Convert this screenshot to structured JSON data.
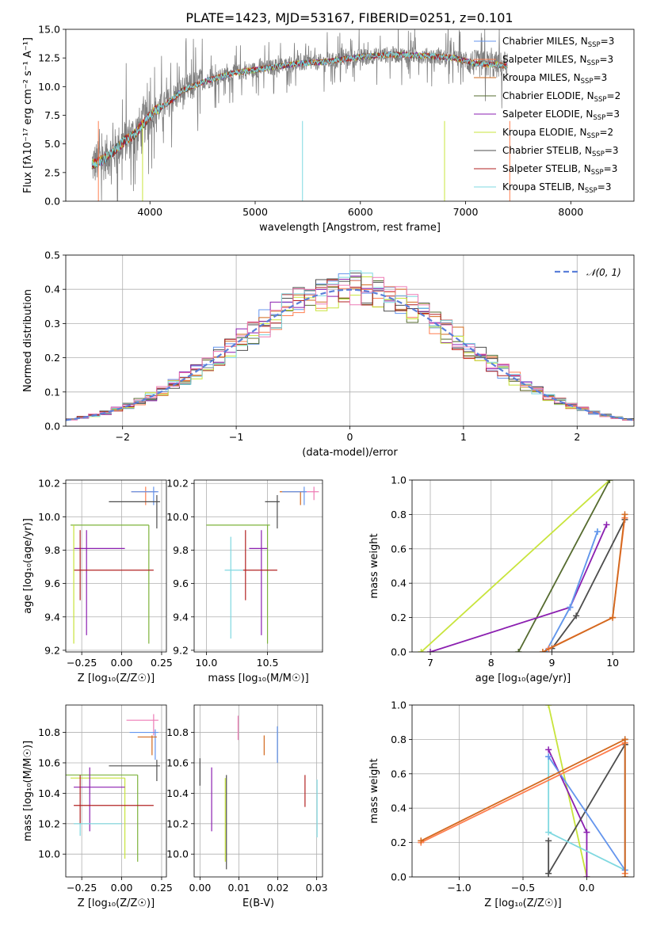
{
  "figure_title": "PLATE=1423, MJD=53167, FIBERID=0251, z=0.101",
  "colors": {
    "data": "#7f7f7f",
    "chabrier_miles": "#6495ed",
    "salpeter_miles": "#ff7f50",
    "kroupa_miles": "#d2691e",
    "chabrier_elodie": "#556b2f",
    "salpeter_elodie": "#8b1fb0",
    "kroupa_elodie": "#c8e43c",
    "chabrier_stelib": "#4d4d4d",
    "salpeter_stelib": "#b22222",
    "kroupa_stelib": "#7fd8e0",
    "normal": "#5b7fd9",
    "extra_pink": "#ee7bb5",
    "extra_green": "#7db33b"
  },
  "chart_data": [
    {
      "id": "spectrum",
      "type": "line",
      "title": "PLATE=1423, MJD=53167, FIBERID=0251, z=0.101",
      "xlabel": "wavelength [Angstrom, rest frame]",
      "ylabel": "Flux [fλ10⁻¹⁷ erg cm⁻² s⁻¹ A⁻¹]",
      "xlim": [
        3200,
        8600
      ],
      "ylim": [
        0,
        15
      ],
      "xticks": [
        4000,
        5000,
        6000,
        7000,
        8000
      ],
      "yticks": [
        0.0,
        2.5,
        5.0,
        7.5,
        10.0,
        12.5,
        15.0
      ],
      "ytick_labels": [
        "0.0",
        "2.5",
        "5.0",
        "7.5",
        "10.0",
        "12.5",
        "15.0"
      ],
      "grid": false,
      "legend_placement": "top-right",
      "continuum_x": [
        3450,
        3550,
        3650,
        3750,
        3850,
        3950,
        4050,
        4150,
        4300,
        4500,
        4800,
        5100,
        5400,
        5700,
        6000,
        6300,
        6600,
        6900,
        7100,
        7300,
        7400
      ],
      "continuum_y": [
        3.2,
        3.6,
        4.3,
        5.2,
        5.8,
        6.9,
        7.9,
        8.4,
        9.6,
        10.4,
        11.2,
        11.6,
        12.0,
        12.2,
        12.6,
        12.8,
        12.7,
        12.5,
        12.0,
        11.9,
        11.8
      ],
      "series": [
        {
          "name": "Chabrier MILES, N_SSP=3",
          "legend_label": "Chabrier MILES, N",
          "legend_sub": "SSP",
          "legend_n": "=3",
          "color": "#6495ed"
        },
        {
          "name": "Salpeter MILES, N_SSP=3",
          "legend_label": "Salpeter MILES, N",
          "legend_sub": "SSP",
          "legend_n": "=3",
          "color": "#ff7f50"
        },
        {
          "name": "Kroupa MILES, N_SSP=3",
          "legend_label": "Kroupa MILES, N",
          "legend_sub": "SSP",
          "legend_n": "=3",
          "color": "#d2691e"
        },
        {
          "name": "Chabrier ELODIE, N_SSP=2",
          "legend_label": "Chabrier ELODIE, N",
          "legend_sub": "SSP",
          "legend_n": "=2",
          "color": "#556b2f"
        },
        {
          "name": "Salpeter ELODIE, N_SSP=3",
          "legend_label": "Salpeter ELODIE, N",
          "legend_sub": "SSP",
          "legend_n": "=3",
          "color": "#8b1fb0"
        },
        {
          "name": "Kroupa ELODIE, N_SSP=2",
          "legend_label": "Kroupa ELODIE, N",
          "legend_sub": "SSP",
          "legend_n": "=2",
          "color": "#c8e43c"
        },
        {
          "name": "Chabrier STELIB, N_SSP=3",
          "legend_label": "Chabrier STELIB, N",
          "legend_sub": "SSP",
          "legend_n": "=3",
          "color": "#4d4d4d"
        },
        {
          "name": "Salpeter STELIB, N_SSP=3",
          "legend_label": "Salpeter STELIB, N",
          "legend_sub": "SSP",
          "legend_n": "=3",
          "color": "#b22222"
        },
        {
          "name": "Kroupa STELIB, N_SSP=3",
          "legend_label": "Kroupa STELIB, N",
          "legend_sub": "SSP",
          "legend_n": "=3",
          "color": "#7fd8e0"
        }
      ]
    },
    {
      "id": "residuals",
      "type": "line",
      "xlabel": "(data-model)/error",
      "ylabel": "Normed distribution",
      "xlim": [
        -2.5,
        2.5
      ],
      "ylim": [
        0,
        0.5
      ],
      "xticks": [
        -2,
        -1,
        0,
        1,
        2
      ],
      "xtick_labels": [
        "−2",
        "−1",
        "0",
        "1",
        "2"
      ],
      "yticks": [
        0.0,
        0.1,
        0.2,
        0.3,
        0.4,
        0.5
      ],
      "ytick_labels": [
        "0.0",
        "0.1",
        "0.2",
        "0.3",
        "0.4",
        "0.5"
      ],
      "grid": true,
      "legend_placement": "top-right",
      "normal_label": "𝒩(0, 1)",
      "histogram_bin_width": 0.1
    },
    {
      "id": "age_vs_Z",
      "type": "scatter",
      "xlabel": "Z [log₁₀(Z/Z☉)]",
      "ylabel": "age  [log₁₀(age/yr)]",
      "xlim": [
        -0.35,
        0.28
      ],
      "ylim": [
        9.19,
        10.22
      ],
      "xticks": [
        -0.25,
        0.0,
        0.25
      ],
      "xtick_labels": [
        "−0.25",
        "0.00",
        "0.25"
      ],
      "yticks": [
        9.2,
        9.4,
        9.6,
        9.8,
        10.0,
        10.2
      ],
      "ytick_labels": [
        "9.2",
        "9.4",
        "9.6",
        "9.8",
        "10.0",
        "10.2"
      ],
      "grid": true,
      "points": [
        {
          "color": "#ff7f50",
          "x": 0.15,
          "xlo": 0.06,
          "xhi": 0.22,
          "y": 10.15,
          "ylo": 10.07,
          "yhi": 10.18
        },
        {
          "color": "#6495ed",
          "x": 0.2,
          "xlo": 0.06,
          "xhi": 0.23,
          "y": 10.15,
          "ylo": 10.07,
          "yhi": 10.18
        },
        {
          "color": "#4d4d4d",
          "x": 0.22,
          "xlo": -0.08,
          "xhi": 0.24,
          "y": 10.09,
          "ylo": 9.93,
          "yhi": 10.13
        },
        {
          "color": "#7db33b",
          "x": 0.17,
          "xlo": -0.32,
          "xhi": 0.17,
          "y": 9.95,
          "ylo": 9.24,
          "yhi": 9.95
        },
        {
          "color": "#8b1fb0",
          "x": -0.22,
          "xlo": -0.3,
          "xhi": 0.02,
          "y": 9.81,
          "ylo": 9.29,
          "yhi": 9.92
        },
        {
          "color": "#b22222",
          "x": -0.26,
          "xlo": -0.3,
          "xhi": 0.2,
          "y": 9.68,
          "ylo": 9.5,
          "yhi": 9.92
        },
        {
          "color": "#c8e43c",
          "x": -0.3,
          "xlo": -0.3,
          "xhi": -0.3,
          "y": 9.68,
          "ylo": 9.24,
          "yhi": 9.95
        }
      ]
    },
    {
      "id": "age_vs_mass",
      "type": "scatter",
      "xlabel": "mass [log₁₀(M/M☉)]",
      "xlim": [
        9.9,
        10.95
      ],
      "ylim": [
        9.19,
        10.22
      ],
      "xticks": [
        10.0,
        10.5
      ],
      "xtick_labels": [
        "10.0",
        "10.5"
      ],
      "yticks": [
        9.2,
        9.4,
        9.6,
        9.8,
        10.0,
        10.2
      ],
      "ytick_labels": [
        "9.2",
        "9.4",
        "9.6",
        "9.8",
        "10.0",
        "10.2"
      ],
      "grid": true,
      "points": [
        {
          "color": "#ee7bb5",
          "x": 10.88,
          "xlo": 10.78,
          "xhi": 10.92,
          "y": 10.15,
          "ylo": 10.1,
          "yhi": 10.18
        },
        {
          "color": "#d2691e",
          "x": 10.77,
          "xlo": 10.6,
          "xhi": 10.8,
          "y": 10.15,
          "ylo": 10.07,
          "yhi": 10.15
        },
        {
          "color": "#6495ed",
          "x": 10.8,
          "xlo": 10.62,
          "xhi": 10.82,
          "y": 10.15,
          "ylo": 10.07,
          "yhi": 10.18
        },
        {
          "color": "#4d4d4d",
          "x": 10.58,
          "xlo": 10.48,
          "xhi": 10.6,
          "y": 10.09,
          "ylo": 9.93,
          "yhi": 10.13
        },
        {
          "color": "#7db33b",
          "x": 10.5,
          "xlo": 10.0,
          "xhi": 10.52,
          "y": 9.95,
          "ylo": 9.24,
          "yhi": 9.95
        },
        {
          "color": "#8b1fb0",
          "x": 10.45,
          "xlo": 10.35,
          "xhi": 10.5,
          "y": 9.81,
          "ylo": 9.29,
          "yhi": 9.92
        },
        {
          "color": "#b22222",
          "x": 10.32,
          "xlo": 10.3,
          "xhi": 10.58,
          "y": 9.68,
          "ylo": 9.5,
          "yhi": 9.92
        },
        {
          "color": "#7fd8e0",
          "x": 10.2,
          "xlo": 10.15,
          "xhi": 10.3,
          "y": 9.68,
          "ylo": 9.27,
          "yhi": 9.88
        }
      ]
    },
    {
      "id": "weight_vs_age",
      "type": "line",
      "xlabel": "age  [log₁₀(age/yr)]",
      "ylabel": "mass weight",
      "xlim": [
        6.7,
        10.35
      ],
      "ylim": [
        0,
        1
      ],
      "xticks": [
        7,
        8,
        9,
        10
      ],
      "xtick_labels": [
        "7",
        "8",
        "9",
        "10"
      ],
      "yticks": [
        0.0,
        0.2,
        0.4,
        0.6,
        0.8,
        1.0
      ],
      "ytick_labels": [
        "0.0",
        "0.2",
        "0.4",
        "0.6",
        "0.8",
        "1.0"
      ],
      "grid": true,
      "series": [
        {
          "color": "#c8e43c",
          "x": [
            6.85,
            9.95
          ],
          "y": [
            0.0,
            1.0
          ]
        },
        {
          "color": "#556b2f",
          "x": [
            8.45,
            9.95
          ],
          "y": [
            0.0,
            1.0
          ]
        },
        {
          "color": "#8b1fb0",
          "x": [
            7.0,
            9.3,
            9.9
          ],
          "y": [
            0.0,
            0.26,
            0.74
          ]
        },
        {
          "color": "#7fd8e0",
          "x": [
            8.9,
            9.3,
            9.75
          ],
          "y": [
            0.0,
            0.26,
            0.7
          ]
        },
        {
          "color": "#6495ed",
          "x": [
            8.9,
            9.3,
            9.75
          ],
          "y": [
            0.0,
            0.26,
            0.7
          ]
        },
        {
          "color": "#4d4d4d",
          "x": [
            9.0,
            9.4,
            10.2
          ],
          "y": [
            0.02,
            0.21,
            0.77
          ]
        },
        {
          "color": "#ff7f50",
          "x": [
            8.95,
            10.0,
            10.2
          ],
          "y": [
            0.02,
            0.2,
            0.78
          ]
        },
        {
          "color": "#d2691e",
          "x": [
            8.85,
            10.0,
            10.2
          ],
          "y": [
            0.0,
            0.2,
            0.8
          ]
        }
      ]
    },
    {
      "id": "mass_vs_Z",
      "type": "scatter",
      "xlabel": "Z [log₁₀(Z/Z☉)]",
      "ylabel": "mass [log₁₀(M/M☉)]",
      "xlim": [
        -0.35,
        0.28
      ],
      "ylim": [
        9.85,
        10.98
      ],
      "xticks": [
        -0.25,
        0.0,
        0.25
      ],
      "xtick_labels": [
        "−0.25",
        "0.00",
        "0.25"
      ],
      "yticks": [
        10.0,
        10.2,
        10.4,
        10.6,
        10.8
      ],
      "ytick_labels": [
        "10.0",
        "10.2",
        "10.4",
        "10.6",
        "10.8"
      ],
      "grid": true,
      "points": [
        {
          "color": "#ee7bb5",
          "x": 0.2,
          "xlo": 0.03,
          "xhi": 0.23,
          "y": 10.88,
          "ylo": 10.78,
          "yhi": 10.92
        },
        {
          "color": "#6495ed",
          "x": 0.21,
          "xlo": 0.05,
          "xhi": 0.23,
          "y": 10.8,
          "ylo": 10.62,
          "yhi": 10.82
        },
        {
          "color": "#d2691e",
          "x": 0.19,
          "xlo": 0.1,
          "xhi": 0.22,
          "y": 10.77,
          "ylo": 10.65,
          "yhi": 10.78
        },
        {
          "color": "#4d4d4d",
          "x": 0.22,
          "xlo": -0.08,
          "xhi": 0.24,
          "y": 10.58,
          "ylo": 10.48,
          "yhi": 10.62
        },
        {
          "color": "#7db33b",
          "x": 0.1,
          "xlo": -0.35,
          "xhi": 0.1,
          "y": 10.52,
          "ylo": 9.95,
          "yhi": 10.52
        },
        {
          "color": "#c8e43c",
          "x": 0.02,
          "xlo": -0.32,
          "xhi": 0.02,
          "y": 10.5,
          "ylo": 9.97,
          "yhi": 10.5
        },
        {
          "color": "#8b1fb0",
          "x": -0.2,
          "xlo": -0.3,
          "xhi": 0.02,
          "y": 10.44,
          "ylo": 10.15,
          "yhi": 10.57
        },
        {
          "color": "#b22222",
          "x": -0.26,
          "xlo": -0.3,
          "xhi": 0.2,
          "y": 10.32,
          "ylo": 10.2,
          "yhi": 10.52
        },
        {
          "color": "#7fd8e0",
          "x": -0.26,
          "xlo": -0.3,
          "xhi": 0.0,
          "y": 10.2,
          "ylo": 10.12,
          "yhi": 10.2
        }
      ]
    },
    {
      "id": "mass_vs_ebv",
      "type": "scatter",
      "xlabel": "E(B-V)",
      "xlim": [
        -0.0015,
        0.0315
      ],
      "ylim": [
        9.85,
        10.98
      ],
      "xticks": [
        0.0,
        0.01,
        0.02,
        0.03
      ],
      "xtick_labels": [
        "0.00",
        "0.01",
        "0.02",
        "0.03"
      ],
      "yticks": [
        10.0,
        10.2,
        10.4,
        10.6,
        10.8
      ],
      "ytick_labels": [
        "10.0",
        "10.2",
        "10.4",
        "10.6",
        "10.8"
      ],
      "grid": true,
      "points": [
        {
          "color": "#4d4d4d",
          "x": 0.0,
          "ylo": 10.45,
          "yhi": 10.63
        },
        {
          "color": "#8b1fb0",
          "x": 0.003,
          "ylo": 10.15,
          "yhi": 10.57
        },
        {
          "color": "#c8e43c",
          "x": 0.0065,
          "ylo": 9.95,
          "yhi": 10.5
        },
        {
          "color": "#4d4d4d",
          "x": 0.0068,
          "ylo": 9.9,
          "yhi": 10.52
        },
        {
          "color": "#ee7bb5",
          "x": 0.0098,
          "ylo": 10.75,
          "yhi": 10.91
        },
        {
          "color": "#d2691e",
          "x": 0.0165,
          "ylo": 10.65,
          "yhi": 10.78
        },
        {
          "color": "#6495ed",
          "x": 0.0199,
          "ylo": 10.6,
          "yhi": 10.84
        },
        {
          "color": "#b22222",
          "x": 0.027,
          "ylo": 10.31,
          "yhi": 10.52
        },
        {
          "color": "#7fd8e0",
          "x": 0.0301,
          "ylo": 10.11,
          "yhi": 10.49
        }
      ]
    },
    {
      "id": "weight_vs_Z",
      "type": "line",
      "xlabel": "Z [log₁₀(Z/Z☉)]",
      "ylabel": "mass weight",
      "xlim": [
        -1.37,
        0.37
      ],
      "ylim": [
        0,
        1
      ],
      "xticks": [
        -1.0,
        -0.5,
        0.0
      ],
      "xtick_labels": [
        "−1.0",
        "−0.5",
        "0.0"
      ],
      "yticks": [
        0.0,
        0.2,
        0.4,
        0.6,
        0.8,
        1.0
      ],
      "ytick_labels": [
        "0.0",
        "0.2",
        "0.4",
        "0.6",
        "0.8",
        "1.0"
      ],
      "grid": true,
      "series": [
        {
          "color": "#c8e43c",
          "x": [
            -0.3,
            0.0
          ],
          "y": [
            1.0,
            0.0
          ]
        },
        {
          "color": "#8b1fb0",
          "x": [
            -0.3,
            0.0,
            0.0
          ],
          "y": [
            0.74,
            0.26,
            0.0
          ]
        },
        {
          "color": "#4d4d4d",
          "x": [
            -0.3,
            -0.3,
            0.3,
            0.3
          ],
          "y": [
            0.21,
            0.02,
            0.77,
            0.77
          ]
        },
        {
          "color": "#7fd8e0",
          "x": [
            -0.3,
            -0.3,
            0.3,
            0.3
          ],
          "y": [
            0.7,
            0.26,
            0.04,
            0.8
          ]
        },
        {
          "color": "#6495ed",
          "x": [
            -0.3,
            0.3,
            0.3
          ],
          "y": [
            0.7,
            0.04,
            0.8
          ]
        },
        {
          "color": "#ff7f50",
          "x": [
            -1.3,
            0.3,
            0.3
          ],
          "y": [
            0.2,
            0.78,
            0.02
          ]
        },
        {
          "color": "#d2691e",
          "x": [
            -1.3,
            0.3,
            0.3
          ],
          "y": [
            0.21,
            0.8,
            0.0
          ]
        }
      ]
    }
  ]
}
